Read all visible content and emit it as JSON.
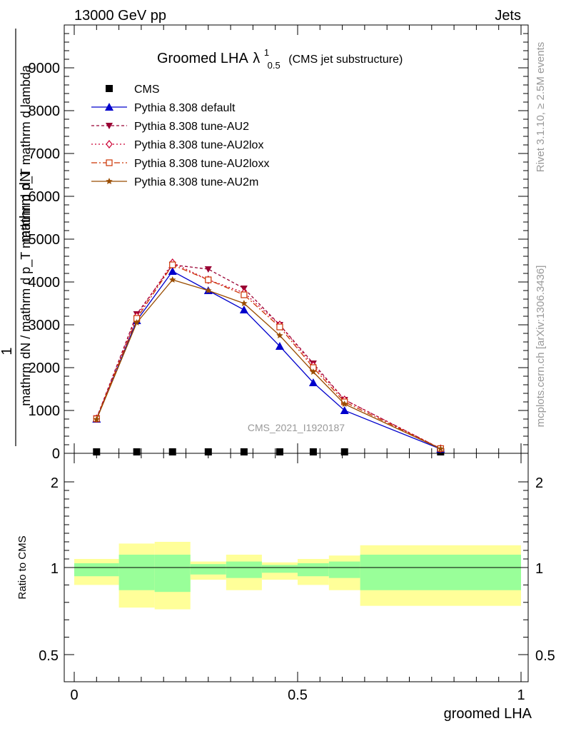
{
  "header": {
    "left": "13000 GeV pp",
    "right": "Jets"
  },
  "side_labels": {
    "rivet": "Rivet 3.1.10, ≥ 2.5M events",
    "mcplots": "mcplots.cern.ch [arXiv:1306.3436]"
  },
  "chart_data": {
    "type": "line",
    "title_main": "Groomed LHA",
    "title_lambda": "λ",
    "title_sup": "1",
    "title_sub": "0.5",
    "title_suffix": "(CMS jet substructure)",
    "watermark": "CMS_2021_I1920187",
    "ylabel_numerator_1": "1",
    "ylabel_denominator_1": "mathrm dN",
    "ylabel_numerator_2": "mathrm d²N",
    "ylabel_denominator_2": "mathrm d p_T mathrm d lambda",
    "ylabel_rest_1": "/ mathrm d p",
    "ylabel_rest_2": "mathrm d p",
    "ylabel_main": "mathrm dN / mathrm d p_T mathrm d p_T mathrm d lambda",
    "xlabel": "groomed LHA",
    "ylim": [
      0,
      10000
    ],
    "xlim": [
      0,
      1
    ],
    "y_ticks": [
      {
        "v": 1000,
        "label": "1000"
      },
      {
        "v": 2000,
        "label": "2000"
      },
      {
        "v": 3000,
        "label": "3000"
      },
      {
        "v": 4000,
        "label": "4000"
      },
      {
        "v": 5000,
        "label": "5000"
      },
      {
        "v": 6000,
        "label": "6000"
      },
      {
        "v": 7000,
        "label": "7000"
      },
      {
        "v": 8000,
        "label": "8000"
      },
      {
        "v": 9000,
        "label": "9000"
      },
      {
        "v": 0,
        "label": "0"
      }
    ],
    "x_ticks": [
      {
        "v": 0,
        "label": "0"
      },
      {
        "v": 0.5,
        "label": "0.5"
      },
      {
        "v": 1,
        "label": "1"
      }
    ],
    "x": [
      0.05,
      0.14,
      0.22,
      0.3,
      0.38,
      0.46,
      0.535,
      0.605,
      0.82
    ],
    "cms": [
      0,
      0,
      0,
      0,
      0,
      0,
      0,
      0,
      0
    ],
    "series": [
      {
        "name": "CMS",
        "marker": "square-filled",
        "color": "#000000",
        "dash": "none",
        "values": [
          0,
          0,
          0,
          0,
          0,
          0,
          0,
          0,
          0
        ]
      },
      {
        "name": "Pythia 8.308 default",
        "marker": "triangle-up-filled",
        "color": "#0000cc",
        "dash": "none",
        "values": [
          800,
          3100,
          4250,
          3800,
          3350,
          2500,
          1650,
          1000,
          100
        ]
      },
      {
        "name": "Pythia 8.308 tune-AU2",
        "marker": "triangle-down-filled",
        "color": "#990033",
        "dash": "4,3",
        "values": [
          820,
          3250,
          4400,
          4300,
          3850,
          3000,
          2100,
          1250,
          110
        ]
      },
      {
        "name": "Pythia 8.308 tune-AU2lox",
        "marker": "diamond-open",
        "color": "#cc0033",
        "dash": "2,3",
        "values": [
          810,
          3200,
          4450,
          4050,
          3750,
          3000,
          2050,
          1250,
          110
        ]
      },
      {
        "name": "Pythia 8.308 tune-AU2loxx",
        "marker": "square-open",
        "color": "#cc3300",
        "dash": "8,3,2,3",
        "values": [
          805,
          3150,
          4400,
          4050,
          3700,
          2950,
          2000,
          1200,
          110
        ]
      },
      {
        "name": "Pythia 8.308 tune-AU2m",
        "marker": "star-filled",
        "color": "#994c00",
        "dash": "none",
        "values": [
          790,
          3050,
          4050,
          3800,
          3500,
          2750,
          1900,
          1150,
          105
        ]
      }
    ],
    "ratio": {
      "ylabel": "Ratio to CMS",
      "ticks": [
        {
          "v": 2,
          "label": "2"
        },
        {
          "v": 1,
          "label": "1"
        },
        {
          "v": 0.5,
          "label": "0.5"
        }
      ],
      "bins": [
        {
          "lo": 0.0,
          "hi": 0.1,
          "green": [
            0.95,
            1.05
          ],
          "yellow": [
            0.9,
            1.1
          ]
        },
        {
          "lo": 0.1,
          "hi": 0.18,
          "green": [
            0.87,
            1.15
          ],
          "yellow": [
            0.77,
            1.28
          ]
        },
        {
          "lo": 0.18,
          "hi": 0.26,
          "green": [
            0.86,
            1.15
          ],
          "yellow": [
            0.76,
            1.3
          ]
        },
        {
          "lo": 0.26,
          "hi": 0.34,
          "green": [
            0.96,
            1.04
          ],
          "yellow": [
            0.93,
            1.07
          ]
        },
        {
          "lo": 0.34,
          "hi": 0.42,
          "green": [
            0.94,
            1.07
          ],
          "yellow": [
            0.87,
            1.15
          ]
        },
        {
          "lo": 0.42,
          "hi": 0.5,
          "green": [
            0.97,
            1.03
          ],
          "yellow": [
            0.93,
            1.06
          ]
        },
        {
          "lo": 0.5,
          "hi": 0.57,
          "green": [
            0.95,
            1.05
          ],
          "yellow": [
            0.9,
            1.1
          ]
        },
        {
          "lo": 0.57,
          "hi": 0.64,
          "green": [
            0.94,
            1.07
          ],
          "yellow": [
            0.87,
            1.14
          ]
        },
        {
          "lo": 0.64,
          "hi": 1.0,
          "green": [
            0.87,
            1.15
          ],
          "yellow": [
            0.78,
            1.26
          ]
        }
      ]
    }
  }
}
